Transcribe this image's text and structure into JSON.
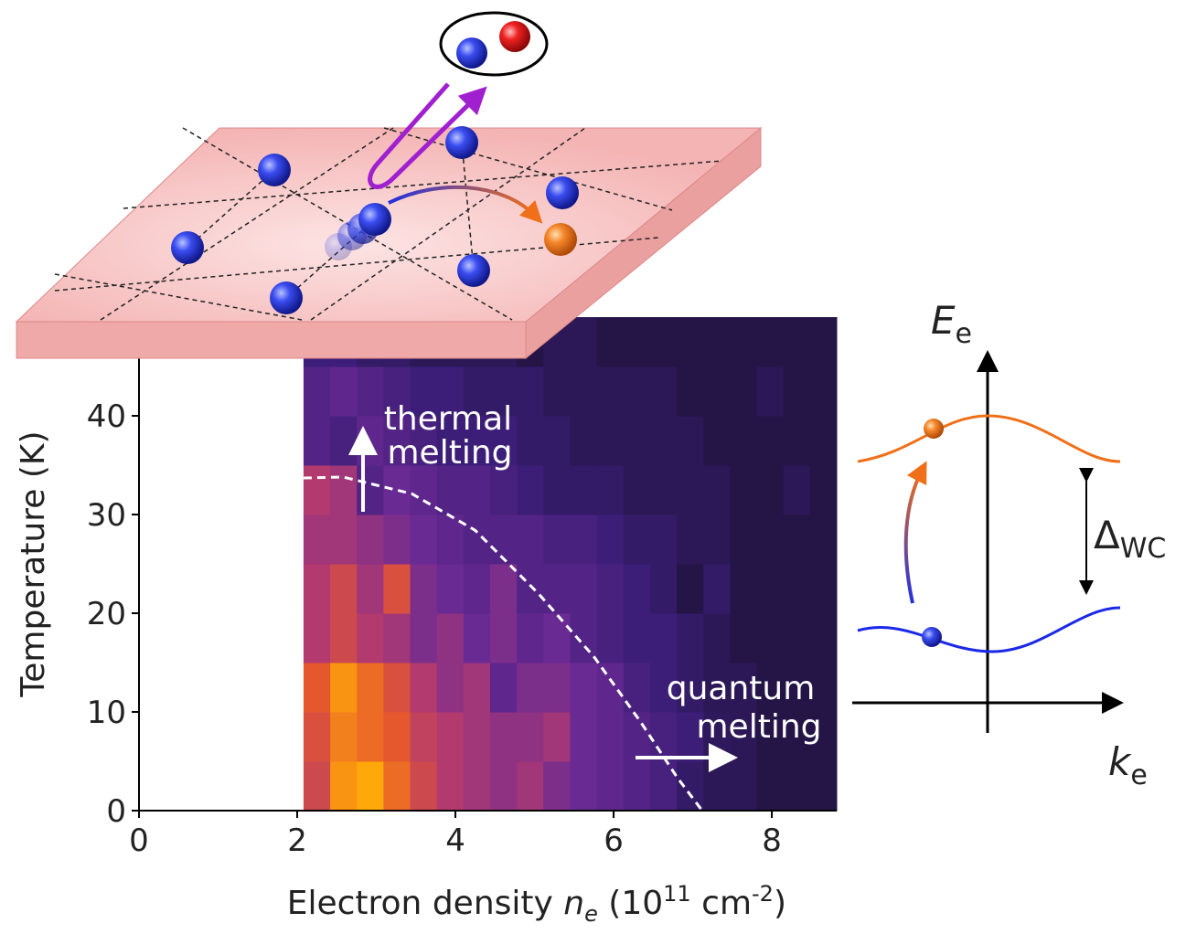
{
  "chart_data": {
    "type": "heatmap",
    "x_label": [
      "Electron density ",
      "n",
      "e",
      " (10",
      "11",
      " cm",
      "-2",
      ")"
    ],
    "y_label": "Temperature (K)",
    "xlim": [
      0,
      8.82
    ],
    "ylim": [
      0,
      50
    ],
    "xticks": [
      0,
      2,
      4,
      6,
      8
    ],
    "yticks": [
      0,
      10,
      20,
      30,
      40
    ],
    "heatmap_xrange": [
      2.08,
      8.82
    ],
    "heatmap_yrange": [
      0,
      50
    ],
    "colormap": [
      "#1c1235",
      "#3c1e78",
      "#6a2a94",
      "#b33a6e",
      "#e5582e",
      "#ffa80a"
    ],
    "z": [
      [
        0.7,
        0.95,
        1.0,
        0.85,
        0.7,
        0.6,
        0.55,
        0.5,
        0.55,
        0.45,
        0.4,
        0.35,
        0.3,
        0.25,
        0.15,
        0.1,
        0.1,
        0.05,
        0.05,
        0.05
      ],
      [
        0.75,
        0.9,
        0.85,
        0.8,
        0.65,
        0.6,
        0.55,
        0.5,
        0.5,
        0.55,
        0.4,
        0.35,
        0.3,
        0.25,
        0.2,
        0.12,
        0.1,
        0.05,
        0.05,
        0.05
      ],
      [
        0.8,
        0.95,
        0.85,
        0.75,
        0.6,
        0.5,
        0.55,
        0.35,
        0.45,
        0.45,
        0.4,
        0.35,
        0.25,
        0.2,
        0.15,
        0.1,
        0.1,
        0.05,
        0.05,
        0.05
      ],
      [
        0.6,
        0.7,
        0.6,
        0.55,
        0.45,
        0.5,
        0.4,
        0.45,
        0.35,
        0.4,
        0.3,
        0.25,
        0.2,
        0.2,
        0.15,
        0.1,
        0.05,
        0.05,
        0.05,
        0.05
      ],
      [
        0.6,
        0.7,
        0.55,
        0.75,
        0.45,
        0.4,
        0.35,
        0.45,
        0.3,
        0.3,
        0.3,
        0.25,
        0.2,
        0.15,
        0.05,
        0.15,
        0.05,
        0.05,
        0.05,
        0.05
      ],
      [
        0.55,
        0.55,
        0.5,
        0.45,
        0.4,
        0.35,
        0.3,
        0.3,
        0.3,
        0.25,
        0.25,
        0.2,
        0.15,
        0.15,
        0.1,
        0.1,
        0.05,
        0.05,
        0.05,
        0.05
      ],
      [
        0.6,
        0.55,
        0.3,
        0.4,
        0.35,
        0.3,
        0.3,
        0.25,
        0.2,
        0.15,
        0.15,
        0.15,
        0.1,
        0.1,
        0.1,
        0.1,
        0.05,
        0.05,
        0.1,
        0.05
      ],
      [
        0.3,
        0.25,
        0.35,
        0.3,
        0.25,
        0.2,
        0.2,
        0.2,
        0.15,
        0.15,
        0.1,
        0.1,
        0.1,
        0.1,
        0.1,
        0.05,
        0.05,
        0.05,
        0.05,
        0.05
      ],
      [
        0.3,
        0.35,
        0.3,
        0.25,
        0.2,
        0.2,
        0.15,
        0.15,
        0.15,
        0.1,
        0.1,
        0.1,
        0.1,
        0.1,
        0.05,
        0.05,
        0.05,
        0.1,
        0.05,
        0.05
      ],
      [
        0.2,
        0.2,
        0.15,
        0.15,
        0.1,
        0.1,
        0.1,
        0.1,
        0.05,
        0.1,
        0.1,
        0.05,
        0.05,
        0.05,
        0.05,
        0.05,
        0.05,
        0.05,
        0.05,
        0.05
      ]
    ],
    "boundary": {
      "x": [
        2.08,
        2.58,
        3.45,
        4.25,
        5.06,
        5.76,
        6.34,
        6.8,
        7.12
      ],
      "y": [
        33.7,
        33.8,
        32.1,
        28.4,
        21.9,
        15.5,
        9,
        3.4,
        0
      ]
    },
    "annotations": {
      "thermal": [
        "thermal",
        "melting"
      ],
      "quantum": [
        "quantum",
        "melting"
      ]
    },
    "band_diagram": {
      "energy": [
        "E",
        "e"
      ],
      "momentum": [
        "k",
        "e"
      ],
      "gap": [
        "Δ",
        "WC"
      ]
    }
  }
}
